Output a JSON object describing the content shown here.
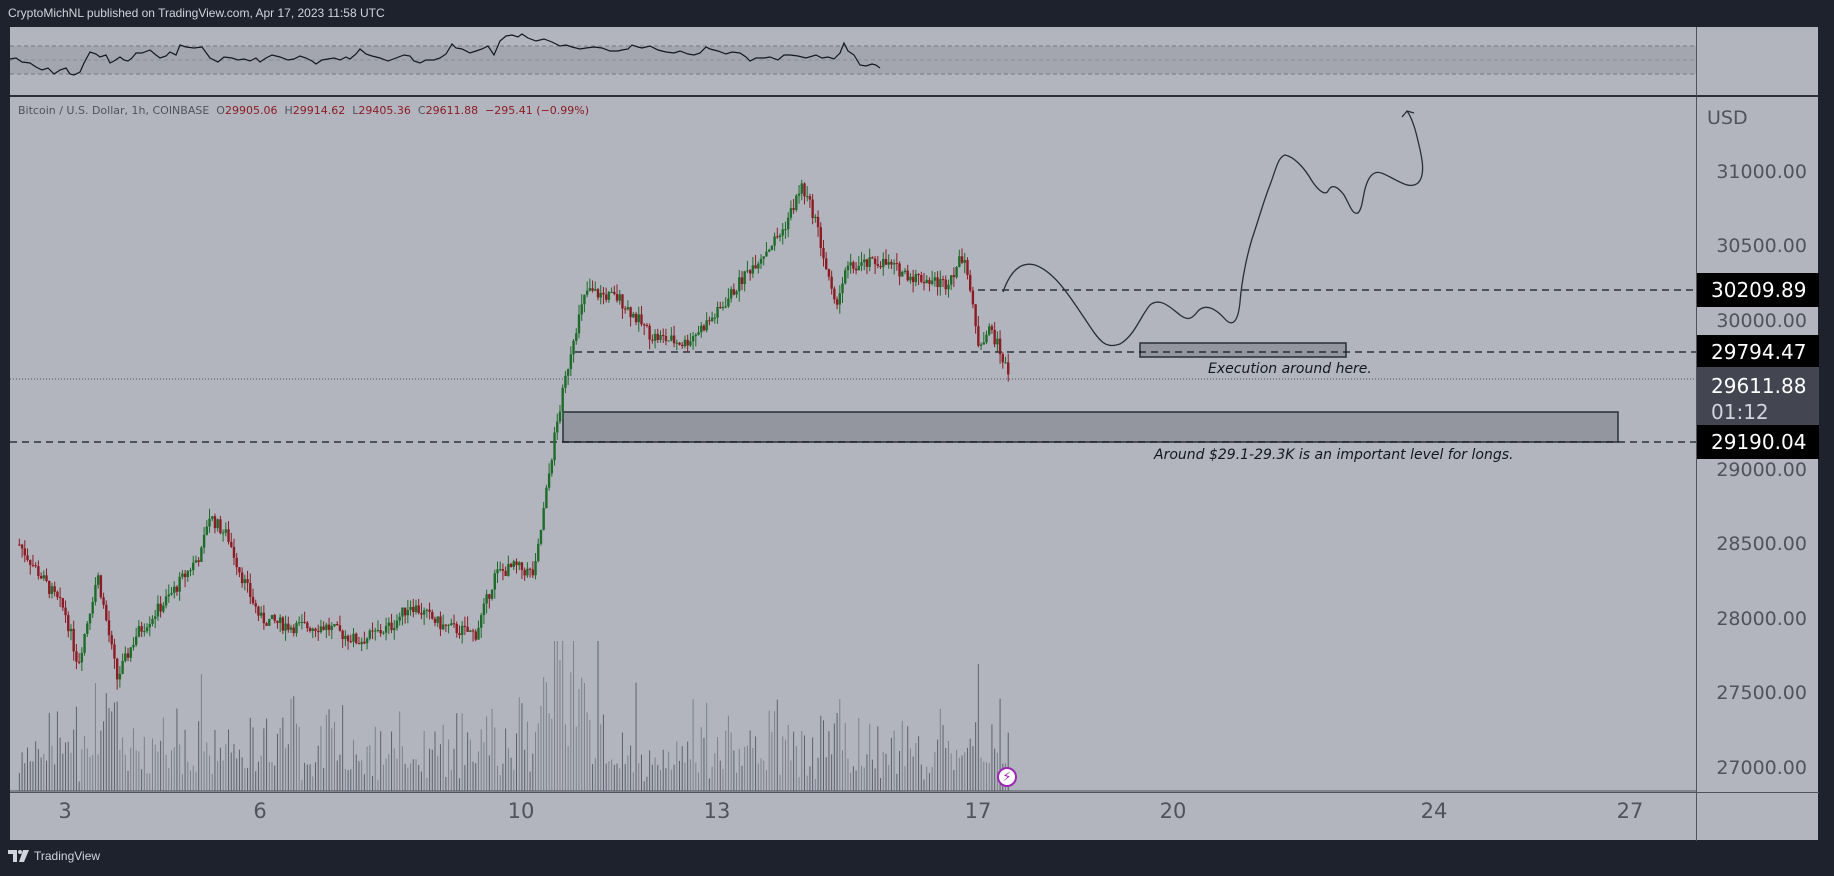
{
  "header": {
    "publish_line": "CryptoMichNL published on TradingView.com, Apr 17, 2023 11:58 UTC"
  },
  "legend": {
    "symbol": "Bitcoin / U.S. Dollar, 1h, COINBASE",
    "open_label": "O",
    "open": "29905.06",
    "high_label": "H",
    "high": "29914.62",
    "low_label": "L",
    "low": "29405.36",
    "close_label": "C",
    "close": "29611.88",
    "change": "−295.41 (−0.99%)"
  },
  "price_axis": {
    "currency": "USD",
    "ticks": [
      "31000.00",
      "30500.00",
      "30000.00",
      "29000.00",
      "28500.00",
      "28000.00",
      "27500.00",
      "27000.00"
    ],
    "tags": {
      "level_high": "30209.89",
      "level_mid": "29794.47",
      "current_price": "29611.88",
      "countdown": "01:12",
      "level_low": "29190.04"
    }
  },
  "time_axis": {
    "ticks": [
      "3",
      "6",
      "10",
      "13",
      "17",
      "20",
      "24",
      "27"
    ]
  },
  "annotations": {
    "execution": "Execution around here.",
    "support": "Around $29.1-29.3K is an important level for longs."
  },
  "footer": {
    "brand": "TradingView"
  },
  "colors": {
    "background": "#b2b5be",
    "up_candle": "#1e6b2a",
    "down_candle": "#8c1c24",
    "frame": "#1e222d",
    "zone_fill": "#93969f",
    "bolt_icon": "#9c27b0"
  },
  "chart_data": {
    "type": "candlestick",
    "title": "Bitcoin / U.S. Dollar, 1h, COINBASE",
    "xlabel": "",
    "ylabel": "USD",
    "x_ticks": [
      "3",
      "6",
      "10",
      "13",
      "17",
      "20",
      "24",
      "27"
    ],
    "y_ticks": [
      27000,
      27500,
      28000,
      28500,
      29000,
      29500,
      30000,
      30500,
      31000
    ],
    "ylim": [
      26850,
      31500
    ],
    "ohlc_last": {
      "open": 29905.06,
      "high": 29914.62,
      "low": 29405.36,
      "close": 29611.88,
      "change": -295.41,
      "change_pct": -0.99
    },
    "approx_close_path": [
      {
        "day": 2.3,
        "price": 28500
      },
      {
        "day": 3.0,
        "price": 28050
      },
      {
        "day": 3.2,
        "price": 27700
      },
      {
        "day": 3.5,
        "price": 28300
      },
      {
        "day": 3.8,
        "price": 27600
      },
      {
        "day": 4.1,
        "price": 27900
      },
      {
        "day": 4.6,
        "price": 28150
      },
      {
        "day": 5.1,
        "price": 28450
      },
      {
        "day": 5.2,
        "price": 28700
      },
      {
        "day": 5.5,
        "price": 28550
      },
      {
        "day": 5.7,
        "price": 28300
      },
      {
        "day": 6.0,
        "price": 28000
      },
      {
        "day": 6.5,
        "price": 27950
      },
      {
        "day": 7.0,
        "price": 27950
      },
      {
        "day": 7.5,
        "price": 27850
      },
      {
        "day": 8.0,
        "price": 27950
      },
      {
        "day": 8.3,
        "price": 28100
      },
      {
        "day": 8.8,
        "price": 27950
      },
      {
        "day": 9.3,
        "price": 27900
      },
      {
        "day": 9.6,
        "price": 28300
      },
      {
        "day": 9.9,
        "price": 28350
      },
      {
        "day": 10.2,
        "price": 28300
      },
      {
        "day": 10.5,
        "price": 29200
      },
      {
        "day": 10.8,
        "price": 29900
      },
      {
        "day": 11.0,
        "price": 30200
      },
      {
        "day": 11.5,
        "price": 30150
      },
      {
        "day": 12.0,
        "price": 29900
      },
      {
        "day": 12.5,
        "price": 29850
      },
      {
        "day": 13.0,
        "price": 30050
      },
      {
        "day": 13.5,
        "price": 30350
      },
      {
        "day": 14.0,
        "price": 30600
      },
      {
        "day": 14.3,
        "price": 30900
      },
      {
        "day": 14.5,
        "price": 30700
      },
      {
        "day": 14.8,
        "price": 30100
      },
      {
        "day": 15.0,
        "price": 30350
      },
      {
        "day": 15.5,
        "price": 30400
      },
      {
        "day": 16.0,
        "price": 30300
      },
      {
        "day": 16.5,
        "price": 30250
      },
      {
        "day": 16.8,
        "price": 30450
      },
      {
        "day": 17.0,
        "price": 29850
      },
      {
        "day": 17.2,
        "price": 29950
      },
      {
        "day": 17.5,
        "price": 29611.88
      }
    ],
    "horizontal_levels": [
      30209.89,
      29794.47,
      29190.04
    ],
    "current_price": 29611.88,
    "zones": [
      {
        "label": "Execution around here.",
        "from": 29770,
        "to": 29870
      },
      {
        "label": "Around $29.1-29.3K is an important level for longs.",
        "from": 29190,
        "to": 29400
      }
    ],
    "projection_drawn": true,
    "indicator_panel": "RSI-style oscillator (top)",
    "volume_panel": true
  }
}
